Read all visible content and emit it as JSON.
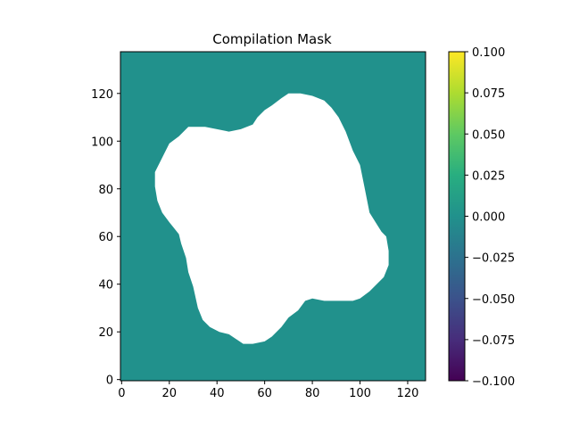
{
  "chart_data": {
    "type": "heatmap",
    "title": "Compilation Mask",
    "xlabel": "",
    "ylabel": "",
    "xlim": [
      -0.5,
      127.5
    ],
    "ylim": [
      -0.5,
      137.5
    ],
    "x_ticks": [
      "0",
      "20",
      "40",
      "60",
      "80",
      "100",
      "120"
    ],
    "x_tick_values": [
      0,
      20,
      40,
      60,
      80,
      100,
      120
    ],
    "y_ticks": [
      "0",
      "20",
      "40",
      "60",
      "80",
      "100",
      "120"
    ],
    "y_tick_values": [
      0,
      20,
      40,
      60,
      80,
      100,
      120
    ],
    "mask_value": 0.0,
    "masked_region_color": "#ffffff",
    "field_color": "#21918c",
    "masked_region_outline": [
      [
        14,
        87
      ],
      [
        14,
        81
      ],
      [
        15,
        75
      ],
      [
        17,
        70
      ],
      [
        20,
        66
      ],
      [
        24,
        61
      ],
      [
        25,
        57
      ],
      [
        27,
        51
      ],
      [
        28,
        45
      ],
      [
        30,
        39
      ],
      [
        32,
        30
      ],
      [
        34,
        25
      ],
      [
        37,
        22
      ],
      [
        41,
        20
      ],
      [
        45,
        19
      ],
      [
        48,
        17
      ],
      [
        51,
        15
      ],
      [
        55,
        15
      ],
      [
        60,
        16
      ],
      [
        63,
        18
      ],
      [
        67,
        22
      ],
      [
        70,
        26
      ],
      [
        74,
        29
      ],
      [
        77,
        33
      ],
      [
        80,
        34
      ],
      [
        85,
        33
      ],
      [
        90,
        33
      ],
      [
        97,
        33
      ],
      [
        100,
        34
      ],
      [
        104,
        37
      ],
      [
        107,
        40
      ],
      [
        110,
        43
      ],
      [
        112,
        48
      ],
      [
        112,
        54
      ],
      [
        111,
        60
      ],
      [
        109,
        62
      ],
      [
        104,
        70
      ],
      [
        102,
        80
      ],
      [
        100,
        90
      ],
      [
        97,
        96
      ],
      [
        94,
        104
      ],
      [
        91,
        110
      ],
      [
        88,
        114
      ],
      [
        85,
        117
      ],
      [
        80,
        119
      ],
      [
        75,
        120
      ],
      [
        70,
        120
      ],
      [
        67,
        118
      ],
      [
        63,
        115
      ],
      [
        60,
        113
      ],
      [
        57,
        110
      ],
      [
        55,
        107
      ],
      [
        50,
        105
      ],
      [
        45,
        104
      ],
      [
        40,
        105
      ],
      [
        35,
        106
      ],
      [
        28,
        106
      ],
      [
        24,
        102
      ],
      [
        20,
        99
      ],
      [
        18,
        95
      ],
      [
        16,
        91
      ]
    ],
    "colorbar": {
      "colormap": "viridis",
      "vmin": -0.1,
      "vmax": 0.1,
      "ticks": [
        -0.1,
        -0.075,
        -0.05,
        -0.025,
        0.0,
        0.025,
        0.05,
        0.075,
        0.1
      ],
      "tick_labels": [
        "−0.100",
        "−0.075",
        "−0.050",
        "−0.025",
        "0.000",
        "0.025",
        "0.050",
        "0.075",
        "0.100"
      ]
    }
  }
}
